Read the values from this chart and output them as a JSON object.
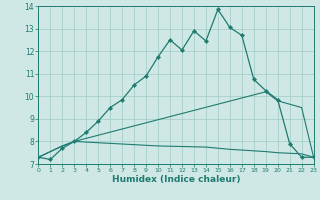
{
  "xlabel": "Humidex (Indice chaleur)",
  "xlim": [
    0,
    23
  ],
  "ylim": [
    7,
    14
  ],
  "yticks": [
    7,
    8,
    9,
    10,
    11,
    12,
    13,
    14
  ],
  "xticks": [
    0,
    1,
    2,
    3,
    4,
    5,
    6,
    7,
    8,
    9,
    10,
    11,
    12,
    13,
    14,
    15,
    16,
    17,
    18,
    19,
    20,
    21,
    22,
    23
  ],
  "bg_color": "#cfe8e6",
  "grid_color": "#a8ceca",
  "line_color": "#1e7b6e",
  "line1_x": [
    0,
    1,
    2,
    3,
    4,
    5,
    6,
    7,
    8,
    9,
    10,
    11,
    12,
    13,
    14,
    15,
    16,
    17,
    18,
    19,
    20,
    21,
    22,
    23
  ],
  "line1_y": [
    7.3,
    7.2,
    7.7,
    8.0,
    8.4,
    8.9,
    9.5,
    9.85,
    10.5,
    10.9,
    11.75,
    12.5,
    12.05,
    12.9,
    12.45,
    13.85,
    13.05,
    12.7,
    10.75,
    10.25,
    9.85,
    7.9,
    7.3,
    7.3
  ],
  "line2_x": [
    0,
    2,
    3,
    19,
    20,
    22,
    23
  ],
  "line2_y": [
    7.3,
    7.8,
    8.0,
    10.2,
    9.8,
    9.5,
    7.3
  ],
  "line3_x": [
    0,
    2,
    3,
    10,
    14,
    15,
    16,
    19,
    20,
    22,
    23
  ],
  "line3_y": [
    7.3,
    7.8,
    8.0,
    7.8,
    7.75,
    7.7,
    7.65,
    7.55,
    7.5,
    7.45,
    7.3
  ]
}
